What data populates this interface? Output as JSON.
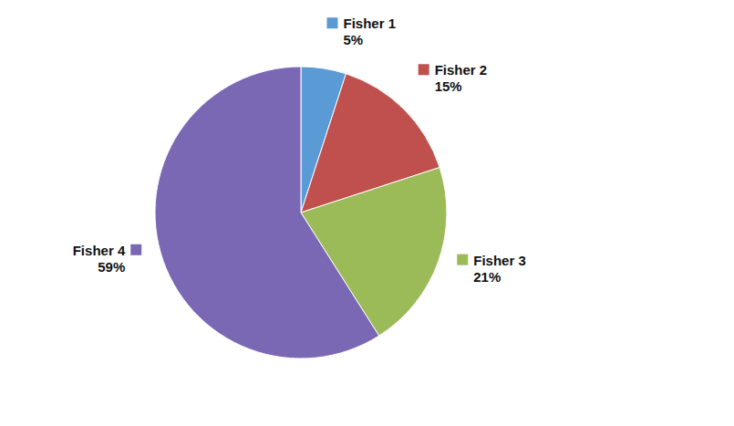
{
  "chart_data": {
    "type": "pie",
    "categories": [
      "Fisher 1",
      "Fisher 2",
      "Fisher 3",
      "Fisher 4"
    ],
    "values": [
      5,
      15,
      21,
      59
    ],
    "value_labels": [
      "5%",
      "15%",
      "21%",
      "59%"
    ],
    "colors": [
      "#5b9bd5",
      "#c0504d",
      "#9bbb59",
      "#7b68b5"
    ],
    "data_labels": true
  }
}
